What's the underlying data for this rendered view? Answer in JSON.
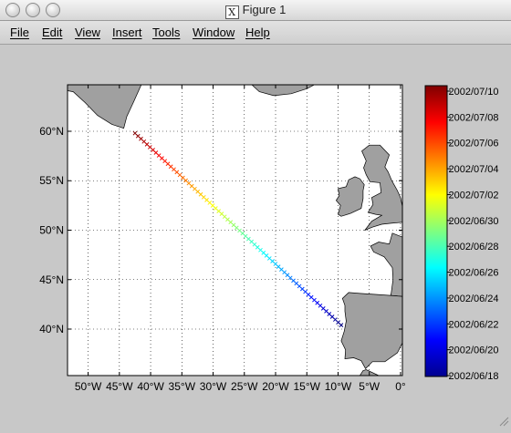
{
  "window": {
    "title": "Figure 1",
    "x_icon": "x11-icon"
  },
  "menu": [
    "File",
    "Edit",
    "View",
    "Insert",
    "Tools",
    "Window",
    "Help"
  ],
  "colors": {
    "land": "#a0a0a0",
    "ocean": "#ffffff",
    "background": "#c8c8c8"
  },
  "chart_data": {
    "type": "scatter",
    "title": "",
    "xlabel": "",
    "ylabel": "",
    "xlim": [
      -53.3,
      0.3
    ],
    "ylim": [
      35.3,
      64.7
    ],
    "grid": true,
    "x_tick_values": [
      -50,
      -45,
      -40,
      -35,
      -30,
      -25,
      -20,
      -15,
      -10,
      -5,
      0
    ],
    "x_tick_labels": [
      "50°W",
      "45°W",
      "40°W",
      "35°W",
      "30°W",
      "25°W",
      "20°W",
      "15°W",
      "10°W",
      "5°W",
      "0°"
    ],
    "y_tick_values": [
      40,
      45,
      50,
      55,
      60
    ],
    "y_tick_labels": [
      "40°N",
      "45°N",
      "50°N",
      "55°N",
      "60°N"
    ],
    "track": {
      "start": {
        "lon": -42.5,
        "lat": 59.8,
        "date": "2002/07/10"
      },
      "end": {
        "lon": -9.5,
        "lat": 40.4,
        "date": "2002/06/18"
      },
      "marker": "x"
    },
    "colorbar": {
      "colormap": "jet",
      "tick_labels": [
        "2002/07/10",
        "2002/07/08",
        "2002/07/06",
        "2002/07/04",
        "2002/07/02",
        "2002/06/30",
        "2002/06/28",
        "2002/06/26",
        "2002/06/24",
        "2002/06/22",
        "2002/06/20",
        "2002/06/18"
      ]
    },
    "coastlines": [
      {
        "name": "greenland",
        "points": [
          [
            -53.3,
            64.7
          ],
          [
            -41.5,
            64.7
          ],
          [
            -42.7,
            63.0
          ],
          [
            -43.8,
            61.5
          ],
          [
            -44.3,
            60.3
          ],
          [
            -46.2,
            60.7
          ],
          [
            -48.5,
            61.6
          ],
          [
            -50.5,
            62.9
          ],
          [
            -52.4,
            64.0
          ],
          [
            -53.3,
            64.1
          ]
        ]
      },
      {
        "name": "iceland",
        "points": [
          [
            -23.8,
            64.7
          ],
          [
            -22.6,
            64.0
          ],
          [
            -20.3,
            63.6
          ],
          [
            -17.5,
            63.8
          ],
          [
            -15.0,
            64.3
          ],
          [
            -13.8,
            64.7
          ]
        ]
      },
      {
        "name": "ireland",
        "points": [
          [
            -10.0,
            51.6
          ],
          [
            -9.5,
            51.4
          ],
          [
            -8.0,
            51.7
          ],
          [
            -6.3,
            52.2
          ],
          [
            -6.0,
            53.2
          ],
          [
            -6.0,
            54.0
          ],
          [
            -5.8,
            54.6
          ],
          [
            -6.5,
            55.2
          ],
          [
            -7.3,
            55.4
          ],
          [
            -8.3,
            55.1
          ],
          [
            -8.7,
            54.4
          ],
          [
            -10.0,
            54.2
          ],
          [
            -9.8,
            53.5
          ],
          [
            -10.3,
            53.0
          ],
          [
            -9.6,
            52.5
          ]
        ]
      },
      {
        "name": "britain",
        "points": [
          [
            -5.7,
            50.0
          ],
          [
            -4.5,
            50.3
          ],
          [
            -3.0,
            50.6
          ],
          [
            -1.5,
            50.7
          ],
          [
            0.3,
            50.8
          ],
          [
            0.3,
            52.4
          ],
          [
            0.0,
            53.3
          ],
          [
            -0.5,
            54.0
          ],
          [
            -1.4,
            55.0
          ],
          [
            -2.0,
            55.9
          ],
          [
            -2.5,
            56.4
          ],
          [
            -1.8,
            57.6
          ],
          [
            -3.3,
            58.6
          ],
          [
            -5.0,
            58.6
          ],
          [
            -6.2,
            58.0
          ],
          [
            -5.5,
            57.0
          ],
          [
            -5.9,
            56.3
          ],
          [
            -5.5,
            55.6
          ],
          [
            -4.9,
            54.9
          ],
          [
            -3.3,
            54.8
          ],
          [
            -3.1,
            53.8
          ],
          [
            -4.6,
            53.3
          ],
          [
            -4.4,
            52.6
          ],
          [
            -5.2,
            51.8
          ],
          [
            -4.0,
            51.6
          ],
          [
            -3.0,
            51.5
          ],
          [
            -4.6,
            50.9
          ]
        ]
      },
      {
        "name": "france",
        "points": [
          [
            0.3,
            49.3
          ],
          [
            -1.3,
            49.7
          ],
          [
            -1.8,
            48.6
          ],
          [
            -3.5,
            48.8
          ],
          [
            -4.8,
            48.4
          ],
          [
            -4.3,
            47.8
          ],
          [
            -2.6,
            47.3
          ],
          [
            -1.3,
            46.2
          ],
          [
            -1.2,
            45.0
          ],
          [
            -1.5,
            43.6
          ],
          [
            -1.6,
            43.4
          ],
          [
            0.3,
            43.3
          ]
        ]
      },
      {
        "name": "iberia",
        "points": [
          [
            0.3,
            43.3
          ],
          [
            -1.6,
            43.4
          ],
          [
            -4.0,
            43.5
          ],
          [
            -6.5,
            43.6
          ],
          [
            -8.3,
            43.7
          ],
          [
            -9.3,
            43.1
          ],
          [
            -8.9,
            42.4
          ],
          [
            -8.9,
            41.8
          ],
          [
            -8.7,
            40.8
          ],
          [
            -9.0,
            39.8
          ],
          [
            -9.5,
            38.8
          ],
          [
            -8.8,
            37.9
          ],
          [
            -8.9,
            37.0
          ],
          [
            -7.5,
            37.1
          ],
          [
            -6.3,
            36.8
          ],
          [
            -5.6,
            36.0
          ],
          [
            -4.5,
            36.7
          ],
          [
            -2.5,
            36.7
          ],
          [
            -0.5,
            37.6
          ],
          [
            0.3,
            38.6
          ]
        ]
      },
      {
        "name": "africa",
        "points": [
          [
            -6.0,
            35.8
          ],
          [
            -5.5,
            35.9
          ],
          [
            -3.5,
            35.3
          ],
          [
            -6.5,
            35.3
          ]
        ]
      }
    ]
  }
}
